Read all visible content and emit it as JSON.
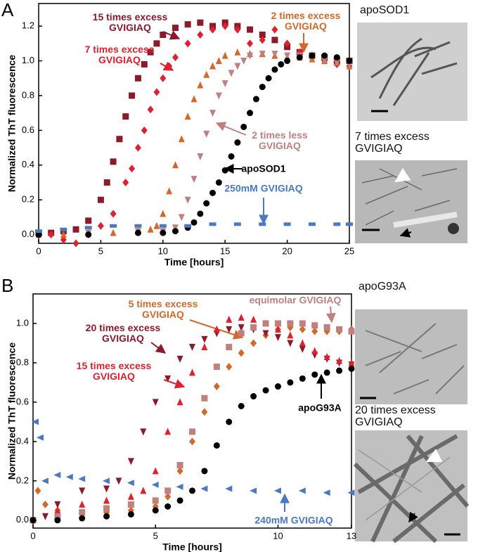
{
  "chart_data": [
    {
      "type": "scatter",
      "panel_label": "A",
      "xlabel": "Time [hours]",
      "ylabel": "Normalized ThT fluorescence",
      "xlim": [
        0,
        25
      ],
      "ylim": [
        -0.05,
        1.33
      ],
      "xticks": [
        0,
        5,
        10,
        15,
        20,
        25
      ],
      "yticks": [
        {
          "value": 0,
          "label": "0.0"
        },
        {
          "value": 0.2,
          "label": "0.2"
        },
        {
          "value": 0.4,
          "label": "0.4"
        },
        {
          "value": 0.6,
          "label": "0.6"
        },
        {
          "value": 0.8,
          "label": "0.8"
        },
        {
          "value": 1,
          "label": "1.0"
        },
        {
          "value": 1.2,
          "label": "1.2"
        }
      ],
      "series": [
        {
          "name": "15 times excess\nGVIGIAQ",
          "color": "#8b1a2b",
          "marker": "square",
          "x": [
            0,
            1,
            2,
            3,
            4,
            5,
            5.5,
            6,
            6.5,
            7,
            7.5,
            8,
            8.5,
            9,
            9.5,
            10,
            11,
            12,
            13,
            14,
            15,
            16,
            17,
            18,
            19,
            20,
            21,
            22,
            23,
            24,
            25
          ],
          "values": [
            0.01,
            0.01,
            0.02,
            0.03,
            0.08,
            0.2,
            0.3,
            0.42,
            0.55,
            0.68,
            0.8,
            0.9,
            0.98,
            1.05,
            1.1,
            1.15,
            1.19,
            1.21,
            1.22,
            1.2,
            1.22,
            1.2,
            1.18,
            1.15,
            1.12,
            1.08,
            1.05,
            1.03,
            1.02,
            1.0,
            1.0
          ]
        },
        {
          "name": "7 times excess\nGVIGIAQ",
          "color": "#e0202e",
          "marker": "diamond",
          "x": [
            0,
            1,
            2,
            3,
            4,
            5,
            6,
            7,
            7.5,
            8,
            8.5,
            9,
            9.5,
            10,
            10.5,
            11,
            12,
            13,
            14,
            15,
            16,
            17,
            18,
            19,
            20,
            21,
            22,
            23,
            24,
            25
          ],
          "values": [
            0.0,
            0.0,
            -0.03,
            -0.05,
            0.0,
            0.05,
            0.12,
            0.3,
            0.38,
            0.5,
            0.6,
            0.72,
            0.82,
            0.9,
            0.97,
            1.02,
            1.1,
            1.15,
            1.18,
            1.2,
            1.18,
            1.1,
            1.12,
            1.18,
            1.1,
            1.05,
            1.03,
            1.0,
            0.98,
            0.97
          ]
        },
        {
          "name": "2 times excess\nGVIGIAQ",
          "color": "#d2692a",
          "marker": "triangle-up",
          "x": [
            0,
            2,
            4,
            6,
            8,
            9,
            9.5,
            10,
            10.5,
            11,
            11.5,
            12,
            12.5,
            13,
            13.5,
            14,
            14.5,
            15,
            16,
            17,
            18,
            19,
            20,
            21,
            22,
            23,
            24,
            25
          ],
          "values": [
            0.0,
            0.0,
            0.01,
            0.01,
            0.02,
            0.03,
            0.05,
            0.12,
            0.25,
            0.4,
            0.55,
            0.68,
            0.78,
            0.86,
            0.92,
            0.97,
            1.0,
            1.03,
            1.05,
            1.04,
            1.04,
            1.03,
            1.02,
            1.02,
            1.01,
            1.0,
            0.99,
            0.97
          ]
        },
        {
          "name": "2 times less\nGVIGIAQ",
          "color": "#c08080",
          "marker": "triangle-down",
          "x": [
            0,
            4,
            8,
            10,
            11,
            11.5,
            12,
            12.5,
            13,
            13.5,
            14,
            14.5,
            15,
            15.5,
            16,
            16.5,
            17,
            18,
            19,
            20,
            21,
            22,
            23,
            24,
            25
          ],
          "values": [
            0,
            0.01,
            0.02,
            0.02,
            0.04,
            0.1,
            0.2,
            0.32,
            0.45,
            0.58,
            0.7,
            0.8,
            0.87,
            0.93,
            0.97,
            1.0,
            1.03,
            1.04,
            1.04,
            1.03,
            1.03,
            1.02,
            1.0,
            0.99,
            0.98
          ]
        },
        {
          "name": "apoSOD1",
          "color": "#000000",
          "marker": "circle",
          "x": [
            0,
            4,
            8,
            10,
            11,
            12,
            12.5,
            13,
            13.5,
            14,
            14.5,
            15,
            15.5,
            16,
            16.5,
            17,
            17.5,
            18,
            18.5,
            19,
            19.5,
            20,
            21,
            22,
            23,
            24,
            25
          ],
          "values": [
            0,
            0,
            0.01,
            0.01,
            0.02,
            0.04,
            0.07,
            0.12,
            0.18,
            0.24,
            0.3,
            0.37,
            0.45,
            0.53,
            0.62,
            0.7,
            0.78,
            0.85,
            0.9,
            0.95,
            0.98,
            1.0,
            1.02,
            1.03,
            1.03,
            1.02,
            1.0
          ]
        },
        {
          "name": "250mM GVIGIAQ",
          "color": "#4a78c2",
          "marker": "dash",
          "x": [
            0,
            2,
            4,
            6,
            8,
            10,
            12,
            14,
            16,
            18,
            20,
            22,
            24,
            25
          ],
          "values": [
            0.02,
            0.03,
            0.04,
            0.05,
            0.05,
            0.05,
            0.05,
            0.06,
            0.06,
            0.06,
            0.06,
            0.06,
            0.06,
            0.06
          ]
        }
      ]
    },
    {
      "type": "scatter",
      "panel_label": "B",
      "xlabel": "Time [hours]",
      "ylabel": "Normalized ThT fluorescence",
      "xlim": [
        0,
        13
      ],
      "ylim": [
        -0.04,
        1.15
      ],
      "xticks": [
        0,
        5,
        10,
        13
      ],
      "yticks": [
        {
          "value": 0,
          "label": "0.0"
        },
        {
          "value": 0.2,
          "label": "0.2"
        },
        {
          "value": 0.4,
          "label": "0.4"
        },
        {
          "value": 0.6,
          "label": "0.6"
        },
        {
          "value": 0.8,
          "label": "0.8"
        },
        {
          "value": 1,
          "label": "1.0"
        }
      ],
      "series": [
        {
          "name": "5 times excess\nGVIGIAQ",
          "color": "#d2692a",
          "marker": "diamond",
          "x": [
            0.2,
            0.5,
            1,
            2,
            3,
            4,
            5,
            5.5,
            6,
            6.5,
            7,
            7.5,
            8,
            8.5,
            9,
            9.5,
            10,
            10.5,
            11,
            11.5,
            12,
            12.5,
            13
          ],
          "values": [
            0.15,
            0.08,
            0.05,
            0.04,
            0.04,
            0.05,
            0.07,
            0.12,
            0.25,
            0.4,
            0.55,
            0.68,
            0.78,
            0.85,
            0.9,
            0.94,
            0.97,
            0.98,
            0.97,
            0.96,
            0.96,
            0.96,
            0.97
          ]
        },
        {
          "name": "20 times excess\nGVIGIAQ",
          "color": "#8b1a2b",
          "marker": "triangle-down",
          "x": [
            0,
            0.5,
            1,
            2,
            3,
            3.5,
            4,
            4.5,
            5,
            5.5,
            6,
            6.5,
            7,
            7.5,
            8,
            8.5,
            9,
            9.5,
            10,
            10.5,
            11,
            11.5,
            12,
            12.5,
            13
          ],
          "values": [
            0.0,
            0.02,
            0.08,
            0.15,
            0.16,
            0.2,
            0.3,
            0.45,
            0.6,
            0.72,
            0.82,
            0.88,
            0.92,
            0.95,
            0.97,
            0.98,
            0.97,
            0.95,
            0.93,
            0.9,
            0.87,
            0.84,
            0.82,
            0.8,
            0.79
          ]
        },
        {
          "name": "15 times excess\nGVIGIAQ",
          "color": "#e0202e",
          "marker": "triangle-up",
          "x": [
            0,
            1,
            2,
            3,
            4,
            4.5,
            5,
            5.5,
            6,
            6.5,
            7,
            7.5,
            8,
            8.5,
            9,
            9.5,
            10,
            10.5,
            11,
            11.5,
            12,
            12.5,
            13
          ],
          "values": [
            0,
            0.05,
            0.08,
            0.1,
            0.12,
            0.15,
            0.25,
            0.45,
            0.6,
            0.75,
            0.88,
            0.97,
            1.02,
            1.03,
            1.02,
            1.0,
            0.97,
            0.94,
            0.9,
            0.86,
            0.83,
            0.81,
            0.8
          ]
        },
        {
          "name": "equimolar GVIGIAQ",
          "color": "#c08080",
          "marker": "square",
          "x": [
            0,
            1,
            2,
            3,
            4,
            5,
            5.5,
            6,
            6.5,
            7,
            7.5,
            8,
            8.5,
            9,
            9.5,
            10,
            10.5,
            11,
            11.5,
            12,
            12.5,
            13
          ],
          "values": [
            0,
            0.02,
            0.04,
            0.06,
            0.08,
            0.1,
            0.15,
            0.28,
            0.45,
            0.62,
            0.78,
            0.88,
            0.95,
            0.98,
            1.0,
            1.0,
            1.0,
            1.0,
            0.99,
            0.98,
            0.97,
            0.96
          ]
        },
        {
          "name": "apoG93A",
          "color": "#000000",
          "marker": "circle",
          "x": [
            0,
            1,
            2,
            3,
            4,
            5,
            5.5,
            6,
            6.5,
            7,
            7.5,
            8,
            8.5,
            9,
            9.5,
            10,
            10.5,
            11,
            11.5,
            12,
            12.5,
            13
          ],
          "values": [
            0,
            0.0,
            0.01,
            0.02,
            0.03,
            0.05,
            0.07,
            0.1,
            0.15,
            0.25,
            0.38,
            0.5,
            0.58,
            0.63,
            0.66,
            0.68,
            0.7,
            0.72,
            0.74,
            0.75,
            0.76,
            0.77
          ]
        },
        {
          "name": "240mM GVIGIAQ",
          "color": "#4a78c2",
          "marker": "triangle-left",
          "x": [
            0.1,
            0.3,
            0.5,
            1,
            1.5,
            2,
            3,
            4,
            5,
            6,
            7,
            8,
            9,
            10,
            11,
            12,
            13
          ],
          "values": [
            0.5,
            0.42,
            0.2,
            0.23,
            0.22,
            0.21,
            0.2,
            0.19,
            0.18,
            0.17,
            0.16,
            0.16,
            0.15,
            0.15,
            0.15,
            0.14,
            0.14
          ]
        }
      ]
    }
  ],
  "micrographs": [
    {
      "caption": "apoSOD1"
    },
    {
      "caption": "7 times excess\nGVIGIAQ"
    },
    {
      "caption": "apoG93A"
    },
    {
      "caption": "20 times excess\nGVIGIAQ"
    }
  ]
}
